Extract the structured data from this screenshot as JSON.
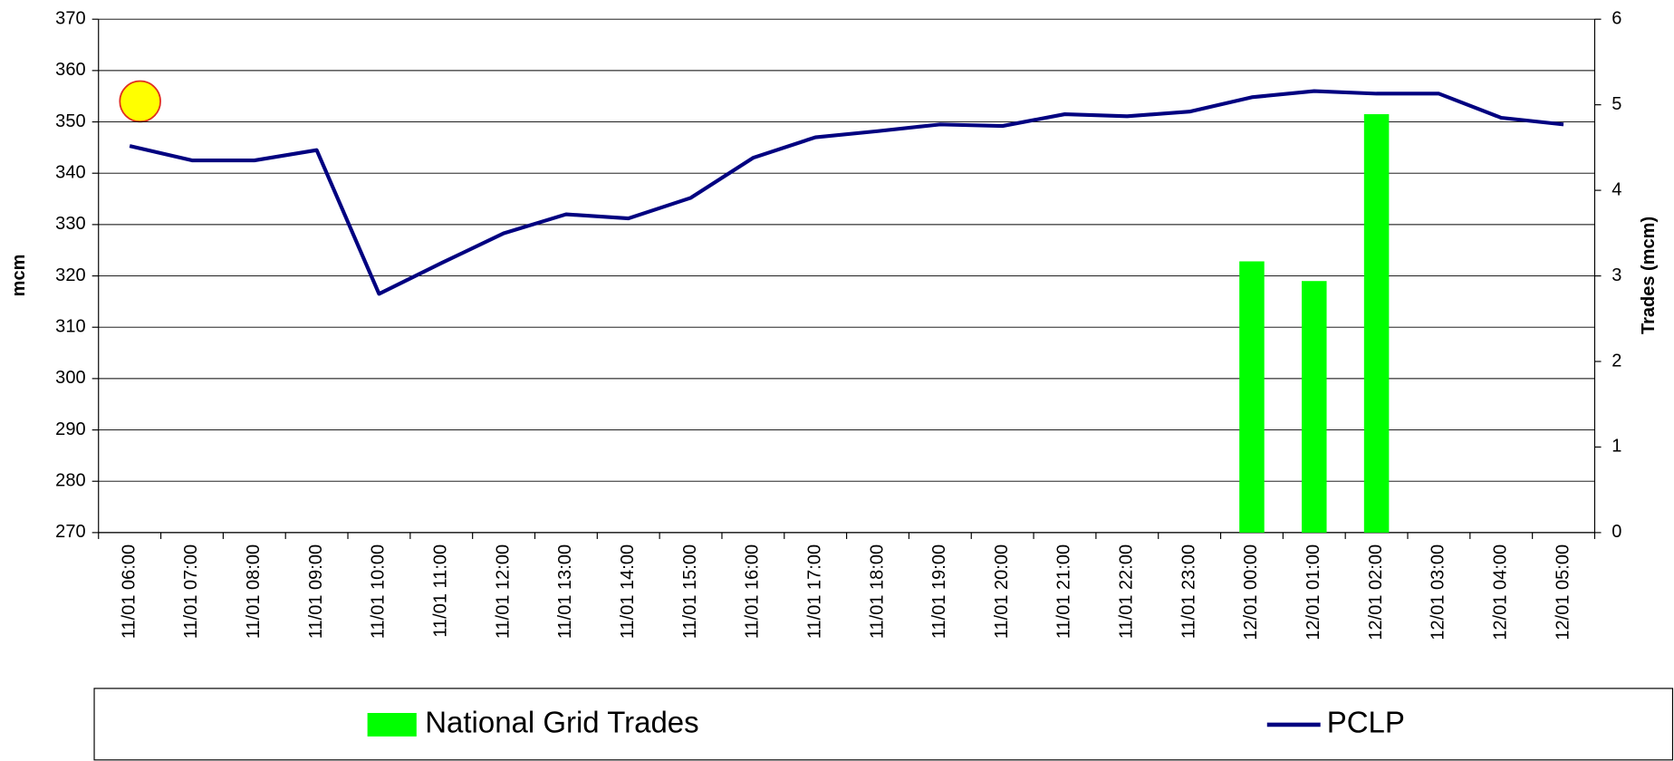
{
  "chart_data": {
    "type": "bar_line",
    "ylabel": "mcm",
    "y2label": "Trades (mcm)",
    "categories": [
      "11/01 06:00",
      "11/01 07:00",
      "11/01 08:00",
      "11/01 09:00",
      "11/01 10:00",
      "11/01 11:00",
      "11/01 12:00",
      "11/01 13:00",
      "11/01 14:00",
      "11/01 15:00",
      "11/01 16:00",
      "11/01 17:00",
      "11/01 18:00",
      "11/01 19:00",
      "11/01 20:00",
      "11/01 21:00",
      "11/01 22:00",
      "11/01 23:00",
      "12/01 00:00",
      "12/01 01:00",
      "12/01 02:00",
      "12/01 03:00",
      "12/01 04:00",
      "12/01 05:00"
    ],
    "series": [
      {
        "name": "National Grid Trades",
        "type": "bar",
        "axis": "y2",
        "color": "#00ff00",
        "values": [
          null,
          null,
          null,
          null,
          null,
          null,
          null,
          null,
          null,
          null,
          null,
          null,
          null,
          null,
          null,
          null,
          null,
          null,
          3.17,
          2.94,
          4.89,
          null,
          null,
          null
        ]
      },
      {
        "name": "PCLP",
        "type": "line",
        "axis": "y",
        "color": "#000080",
        "values": [
          345.3,
          342.5,
          342.5,
          344.5,
          316.5,
          322.5,
          328.3,
          332,
          331.2,
          335.2,
          343,
          347,
          348.2,
          349.5,
          349.2,
          351.5,
          351.1,
          352,
          354.8,
          356,
          355.5,
          355.5,
          350.8,
          349.5
        ]
      }
    ],
    "ylim": [
      270,
      370
    ],
    "yticks": [
      270,
      280,
      290,
      300,
      310,
      320,
      330,
      340,
      350,
      360,
      370
    ],
    "y2lim": [
      0,
      6
    ],
    "y2ticks": [
      0,
      1,
      2,
      3,
      4,
      5,
      6
    ],
    "grid": true
  }
}
